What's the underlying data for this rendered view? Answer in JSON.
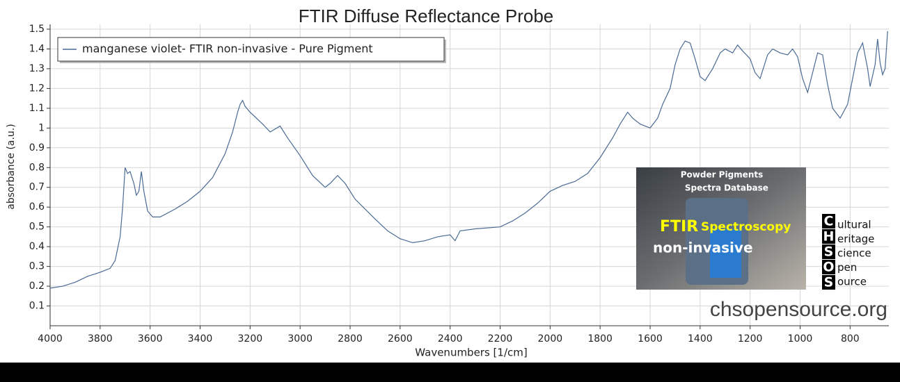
{
  "chart_data": {
    "type": "line",
    "title": "FTIR Diffuse Reflectance Probe",
    "x_label": "Wavenumbers [1/cm]",
    "y_label": "absorbance (a.u.)",
    "xlim": [
      4000,
      645
    ],
    "ylim": [
      0,
      1.5
    ],
    "xticks": [
      4000,
      3800,
      3600,
      3400,
      3200,
      3000,
      2800,
      2600,
      2400,
      2200,
      2000,
      1800,
      1600,
      1400,
      1200,
      1000,
      800
    ],
    "yticks": [
      0.1,
      0.2,
      0.3,
      0.4,
      0.5,
      0.6,
      0.7,
      0.8,
      0.9,
      1,
      1.1,
      1.2,
      1.3,
      1.4,
      1.5
    ],
    "grid": true,
    "legend": "upper left",
    "x": [
      4000,
      3950,
      3900,
      3850,
      3800,
      3760,
      3740,
      3720,
      3710,
      3700,
      3690,
      3680,
      3665,
      3655,
      3645,
      3635,
      3625,
      3610,
      3590,
      3560,
      3500,
      3450,
      3400,
      3350,
      3300,
      3270,
      3250,
      3240,
      3230,
      3220,
      3200,
      3150,
      3120,
      3080,
      3050,
      3000,
      2950,
      2900,
      2880,
      2850,
      2820,
      2780,
      2700,
      2650,
      2600,
      2550,
      2500,
      2450,
      2400,
      2380,
      2360,
      2300,
      2200,
      2150,
      2100,
      2050,
      2000,
      1950,
      1900,
      1850,
      1800,
      1750,
      1720,
      1700,
      1690,
      1670,
      1640,
      1600,
      1570,
      1550,
      1520,
      1500,
      1480,
      1460,
      1440,
      1420,
      1400,
      1380,
      1350,
      1320,
      1300,
      1270,
      1250,
      1230,
      1200,
      1180,
      1160,
      1130,
      1110,
      1080,
      1050,
      1030,
      1010,
      990,
      970,
      950,
      930,
      910,
      890,
      870,
      840,
      810,
      790,
      770,
      750,
      730,
      720,
      700,
      690,
      680,
      670,
      660,
      650
    ],
    "series": [
      {
        "name": "manganese violet- FTIR non-invasive - Pure Pigment",
        "color": "#4a6a94",
        "values": [
          0.19,
          0.2,
          0.22,
          0.25,
          0.27,
          0.29,
          0.33,
          0.45,
          0.6,
          0.8,
          0.77,
          0.78,
          0.72,
          0.66,
          0.68,
          0.78,
          0.68,
          0.58,
          0.55,
          0.55,
          0.59,
          0.63,
          0.68,
          0.75,
          0.87,
          0.98,
          1.08,
          1.12,
          1.14,
          1.11,
          1.08,
          1.02,
          0.98,
          1.01,
          0.95,
          0.86,
          0.76,
          0.7,
          0.72,
          0.76,
          0.72,
          0.64,
          0.54,
          0.48,
          0.44,
          0.42,
          0.43,
          0.45,
          0.46,
          0.43,
          0.48,
          0.49,
          0.5,
          0.53,
          0.57,
          0.62,
          0.68,
          0.71,
          0.73,
          0.77,
          0.85,
          0.95,
          1.02,
          1.06,
          1.08,
          1.05,
          1.02,
          1.0,
          1.05,
          1.12,
          1.2,
          1.32,
          1.4,
          1.44,
          1.43,
          1.35,
          1.26,
          1.24,
          1.3,
          1.38,
          1.4,
          1.38,
          1.42,
          1.39,
          1.35,
          1.28,
          1.25,
          1.37,
          1.4,
          1.38,
          1.37,
          1.4,
          1.36,
          1.25,
          1.18,
          1.28,
          1.38,
          1.37,
          1.22,
          1.1,
          1.05,
          1.12,
          1.25,
          1.38,
          1.43,
          1.3,
          1.21,
          1.32,
          1.45,
          1.33,
          1.27,
          1.3,
          1.49
        ]
      }
    ],
    "inset_texts": [
      "Powder Pigments",
      "Spectra",
      "Database",
      "FTIR",
      "Spectroscopy",
      "non-invasive"
    ],
    "logo_letters": [
      "C",
      "H",
      "S",
      "O",
      "S"
    ],
    "logo_words": [
      "ultural",
      "eritage",
      "cience",
      "pen",
      "ource"
    ],
    "url": "chsopensource.org"
  }
}
